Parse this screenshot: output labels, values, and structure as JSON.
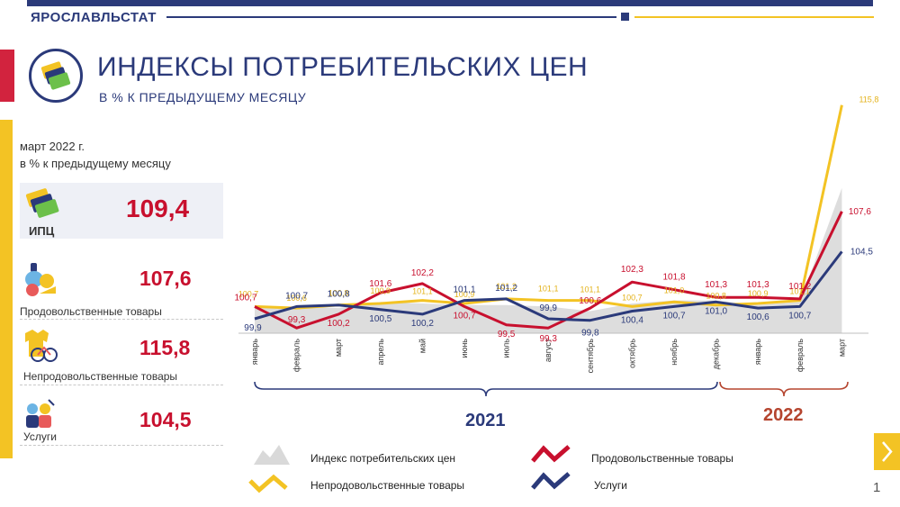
{
  "header": {
    "brand": "ЯРОСЛАВЛЬСТАТ",
    "title": "ИНДЕКСЫ ПОТРЕБИТЕЛЬСКИХ ЦЕН",
    "subtitle": "В % К ПРЕДЫДУЩЕМУ МЕСЯЦУ"
  },
  "sidebar": {
    "period": "март 2022 г.",
    "unit": "в % к предыдущему месяцу",
    "items": [
      {
        "label": "ИПЦ",
        "value": "109,4"
      },
      {
        "label": "Продовольственные товары",
        "value": "107,6"
      },
      {
        "label": "Непродовольственные товары",
        "value": "115,8"
      },
      {
        "label": "Услуги",
        "value": "104,5"
      }
    ]
  },
  "page_number": "1",
  "colors": {
    "cpi": "#d9d9d9",
    "food": "#c8102e",
    "nonfood": "#f3c324",
    "services": "#2b3a7a"
  },
  "chart_data": {
    "type": "line",
    "categories": [
      "январь",
      "февраль",
      "март",
      "апрель",
      "май",
      "июнь",
      "июль",
      "август",
      "сентябрь",
      "октябрь",
      "ноябрь",
      "декабрь",
      "январь",
      "февраль",
      "март"
    ],
    "year_groups": [
      {
        "label": "2021",
        "from": 0,
        "to": 11
      },
      {
        "label": "2022",
        "from": 12,
        "to": 14
      }
    ],
    "series": [
      {
        "name": "Индекс потребительских цен",
        "kind": "area",
        "color": "#d9d9d9",
        "values": [
          100.6,
          100.7,
          100.6,
          101.0,
          100.9,
          100.8,
          100.8,
          100.7,
          100.4,
          100.9,
          101.1,
          101.1,
          100.8,
          101.0,
          109.4
        ]
      },
      {
        "name": "Продовольственные товары",
        "kind": "line",
        "color": "#c8102e",
        "values": [
          100.7,
          99.3,
          100.2,
          101.6,
          102.2,
          100.7,
          99.5,
          99.3,
          100.6,
          102.3,
          101.8,
          101.3,
          101.3,
          101.2,
          107.6
        ],
        "labels": [
          "100,7",
          "99,3",
          "100,2",
          "101,6",
          "102,2",
          "100,7",
          "99,5",
          "99,3",
          "100,6",
          "102,3",
          "101,8",
          "101,3",
          "101,3",
          "101,2",
          "107,6"
        ]
      },
      {
        "name": "Непродовольственные товары",
        "kind": "line",
        "color": "#f3c324",
        "values": [
          100.7,
          100.6,
          100.8,
          100.9,
          101.1,
          100.9,
          101.2,
          101.1,
          101.1,
          100.7,
          101.0,
          100.8,
          100.9,
          101.1,
          115.8
        ],
        "labels": [
          "100,7",
          "100,6",
          "100,8",
          "100,9",
          "101,1",
          "100,9",
          "101,2",
          "101,1",
          "101,1",
          "100,7",
          "101,0",
          "100,8",
          "100,9",
          "101,1",
          "115,8"
        ]
      },
      {
        "name": "Услуги",
        "kind": "line",
        "color": "#2b3a7a",
        "values": [
          99.9,
          100.7,
          100.8,
          100.5,
          100.2,
          101.1,
          101.2,
          99.9,
          99.8,
          100.4,
          100.7,
          101.0,
          100.6,
          100.7,
          104.5
        ],
        "labels": [
          "99,9",
          "100,7",
          "100,8",
          "100,5",
          "100,2",
          "101,1",
          "101,2",
          "99,9",
          "99,8",
          "100,4",
          "100,7",
          "101,0",
          "100,6",
          "100,7",
          "104,5"
        ]
      }
    ]
  }
}
